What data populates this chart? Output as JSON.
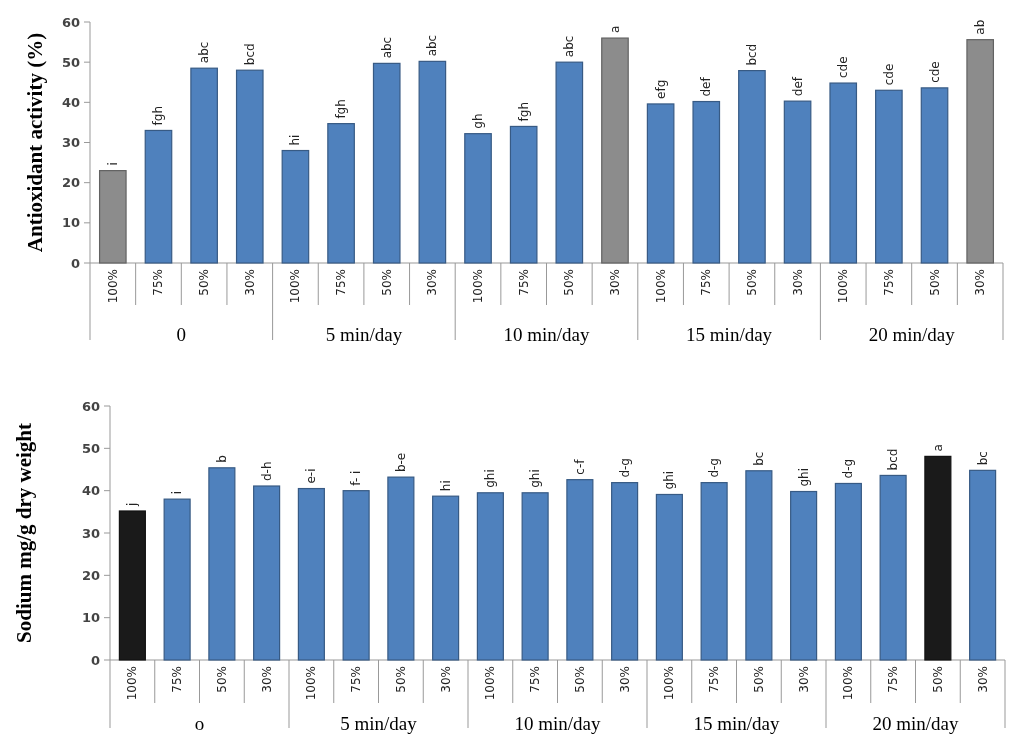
{
  "chart_data": [
    {
      "type": "bar",
      "ylabel": "Antioxidant activity (%)",
      "categories": [
        "100%",
        "75%",
        "50%",
        "30%",
        "100%",
        "75%",
        "50%",
        "30%",
        "100%",
        "75%",
        "50%",
        "30%",
        "100%",
        "75%",
        "50%",
        "30%",
        "100%",
        "75%",
        "50%",
        "30%"
      ],
      "values": [
        23,
        33,
        48.5,
        48,
        28,
        34.7,
        49.7,
        50.2,
        32.2,
        34,
        50,
        56,
        39.6,
        40.2,
        47.9,
        40.3,
        44.8,
        43,
        43.6,
        55.6
      ],
      "colors": [
        "#8c8c8c",
        "#4f81bd",
        "#4f81bd",
        "#4f81bd",
        "#4f81bd",
        "#4f81bd",
        "#4f81bd",
        "#4f81bd",
        "#4f81bd",
        "#4f81bd",
        "#4f81bd",
        "#8c8c8c",
        "#4f81bd",
        "#4f81bd",
        "#4f81bd",
        "#4f81bd",
        "#4f81bd",
        "#4f81bd",
        "#4f81bd",
        "#8c8c8c"
      ],
      "value_labels": [
        "i",
        "fgh",
        "abc",
        "bcd",
        "hi",
        "fgh",
        "abc",
        "abc",
        "gh",
        "fgh",
        "abc",
        "a",
        "efg",
        "def",
        "bcd",
        "def",
        "cde",
        "cde",
        "cde",
        "ab"
      ],
      "annotations": [
        "0",
        "5 min/day",
        "10 min/day",
        "15 min/day",
        "20 min/day"
      ],
      "ylim": [
        0,
        60
      ],
      "yticks": [
        0,
        10,
        20,
        30,
        40,
        50,
        60
      ]
    },
    {
      "type": "bar",
      "ylabel": "Sodium mg/g dry weight",
      "categories": [
        "100%",
        "75%",
        "50%",
        "30%",
        "100%",
        "75%",
        "50%",
        "30%",
        "100%",
        "75%",
        "50%",
        "30%",
        "100%",
        "75%",
        "50%",
        "30%",
        "100%",
        "75%",
        "50%",
        "30%"
      ],
      "values": [
        35.2,
        38,
        45.4,
        41.1,
        40.5,
        40,
        43.2,
        38.7,
        39.5,
        39.5,
        42.6,
        41.9,
        39.1,
        41.9,
        44.7,
        39.8,
        41.7,
        43.6,
        48.1,
        44.8
      ],
      "colors": [
        "#1a1a1a",
        "#4f81bd",
        "#4f81bd",
        "#4f81bd",
        "#4f81bd",
        "#4f81bd",
        "#4f81bd",
        "#4f81bd",
        "#4f81bd",
        "#4f81bd",
        "#4f81bd",
        "#4f81bd",
        "#4f81bd",
        "#4f81bd",
        "#4f81bd",
        "#4f81bd",
        "#4f81bd",
        "#4f81bd",
        "#1a1a1a",
        "#4f81bd"
      ],
      "value_labels": [
        "j",
        "i",
        "b",
        "d-h",
        "e-i",
        "f- i",
        "b-e",
        "hi",
        "ghi",
        "ghi",
        "c-f",
        "d-g",
        "ghi",
        "d-g",
        "bc",
        "ghi",
        "d-g",
        "bcd",
        "a",
        "bc"
      ],
      "annotations": [
        "o",
        "5 min/day",
        "10 min/day",
        "15 min/day",
        "20 min/day"
      ],
      "ylim": [
        0,
        60
      ],
      "yticks": [
        0,
        10,
        20,
        30,
        40,
        50,
        60
      ]
    }
  ]
}
